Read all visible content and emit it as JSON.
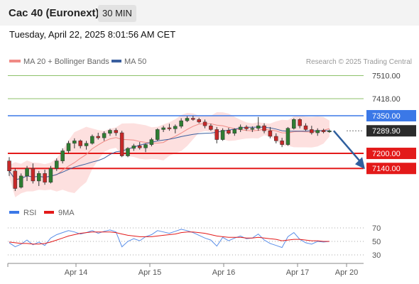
{
  "header": {
    "title": "Cac 40 (Euronext)",
    "timeframe": "30 MIN",
    "datetime": "Tuesday, April 22, 2025 8:01:56 AM CET"
  },
  "legend": {
    "items": [
      {
        "label": "MA 20 + Bollinger Bands",
        "color": "#f08a85"
      },
      {
        "label": "MA 50",
        "color": "#3a5f9f"
      }
    ],
    "credit": "Research © 2025 Trading Central"
  },
  "chart_data": [
    {
      "type": "candlestick",
      "title": "Cac 40 (Euronext)",
      "x_ticks": [
        "Apr 14",
        "Apr 15",
        "Apr 16",
        "Apr 17",
        "Apr 20"
      ],
      "ylim": [
        7060,
        7540
      ],
      "levels": [
        {
          "value": 7510.0,
          "label": "7510.00",
          "kind": "resistance",
          "color": "#8dc26a"
        },
        {
          "value": 7418.0,
          "label": "7418.00",
          "kind": "resistance",
          "color": "#8dc26a"
        },
        {
          "value": 7350.0,
          "label": "7350.00",
          "kind": "pivot",
          "color": "#3b78e7"
        },
        {
          "value": 7289.9,
          "label": "7289.90",
          "kind": "last",
          "color": "#2b2b2b"
        },
        {
          "value": 7200.0,
          "label": "7200.00",
          "kind": "support",
          "color": "#e31a1a"
        },
        {
          "value": 7140.0,
          "label": "7140.00",
          "kind": "support",
          "color": "#e31a1a"
        }
      ],
      "candles": [
        {
          "o": 7170,
          "h": 7185,
          "l": 7110,
          "c": 7130
        },
        {
          "o": 7130,
          "h": 7140,
          "l": 7050,
          "c": 7060
        },
        {
          "o": 7065,
          "h": 7120,
          "l": 7060,
          "c": 7110
        },
        {
          "o": 7110,
          "h": 7150,
          "l": 7090,
          "c": 7140
        },
        {
          "o": 7140,
          "h": 7160,
          "l": 7080,
          "c": 7090
        },
        {
          "o": 7090,
          "h": 7130,
          "l": 7070,
          "c": 7120
        },
        {
          "o": 7120,
          "h": 7135,
          "l": 7075,
          "c": 7085
        },
        {
          "o": 7085,
          "h": 7150,
          "l": 7080,
          "c": 7140
        },
        {
          "o": 7140,
          "h": 7180,
          "l": 7130,
          "c": 7170
        },
        {
          "o": 7170,
          "h": 7220,
          "l": 7160,
          "c": 7210
        },
        {
          "o": 7210,
          "h": 7250,
          "l": 7200,
          "c": 7240
        },
        {
          "o": 7240,
          "h": 7260,
          "l": 7220,
          "c": 7250
        },
        {
          "o": 7250,
          "h": 7255,
          "l": 7220,
          "c": 7230
        },
        {
          "o": 7230,
          "h": 7250,
          "l": 7215,
          "c": 7240
        },
        {
          "o": 7240,
          "h": 7275,
          "l": 7235,
          "c": 7268
        },
        {
          "o": 7268,
          "h": 7282,
          "l": 7255,
          "c": 7262
        },
        {
          "o": 7262,
          "h": 7288,
          "l": 7250,
          "c": 7280
        },
        {
          "o": 7280,
          "h": 7298,
          "l": 7270,
          "c": 7292
        },
        {
          "o": 7292,
          "h": 7300,
          "l": 7270,
          "c": 7282
        },
        {
          "o": 7282,
          "h": 7290,
          "l": 7185,
          "c": 7190
        },
        {
          "o": 7190,
          "h": 7225,
          "l": 7185,
          "c": 7220
        },
        {
          "o": 7220,
          "h": 7238,
          "l": 7210,
          "c": 7230
        },
        {
          "o": 7230,
          "h": 7245,
          "l": 7215,
          "c": 7222
        },
        {
          "o": 7222,
          "h": 7240,
          "l": 7205,
          "c": 7235
        },
        {
          "o": 7235,
          "h": 7262,
          "l": 7228,
          "c": 7255
        },
        {
          "o": 7255,
          "h": 7300,
          "l": 7250,
          "c": 7295
        },
        {
          "o": 7295,
          "h": 7310,
          "l": 7285,
          "c": 7302
        },
        {
          "o": 7302,
          "h": 7318,
          "l": 7290,
          "c": 7298
        },
        {
          "o": 7298,
          "h": 7315,
          "l": 7280,
          "c": 7308
        },
        {
          "o": 7308,
          "h": 7340,
          "l": 7300,
          "c": 7330
        },
        {
          "o": 7330,
          "h": 7348,
          "l": 7325,
          "c": 7340
        },
        {
          "o": 7340,
          "h": 7350,
          "l": 7330,
          "c": 7335
        },
        {
          "o": 7335,
          "h": 7342,
          "l": 7320,
          "c": 7325
        },
        {
          "o": 7325,
          "h": 7335,
          "l": 7300,
          "c": 7310
        },
        {
          "o": 7310,
          "h": 7318,
          "l": 7290,
          "c": 7295
        },
        {
          "o": 7295,
          "h": 7305,
          "l": 7240,
          "c": 7255
        },
        {
          "o": 7255,
          "h": 7300,
          "l": 7250,
          "c": 7292
        },
        {
          "o": 7292,
          "h": 7302,
          "l": 7275,
          "c": 7280
        },
        {
          "o": 7280,
          "h": 7300,
          "l": 7270,
          "c": 7295
        },
        {
          "o": 7295,
          "h": 7315,
          "l": 7285,
          "c": 7305
        },
        {
          "o": 7305,
          "h": 7312,
          "l": 7290,
          "c": 7298
        },
        {
          "o": 7298,
          "h": 7308,
          "l": 7285,
          "c": 7300
        },
        {
          "o": 7300,
          "h": 7345,
          "l": 7290,
          "c": 7310
        },
        {
          "o": 7310,
          "h": 7320,
          "l": 7280,
          "c": 7290
        },
        {
          "o": 7290,
          "h": 7305,
          "l": 7260,
          "c": 7268
        },
        {
          "o": 7268,
          "h": 7280,
          "l": 7240,
          "c": 7250
        },
        {
          "o": 7250,
          "h": 7262,
          "l": 7225,
          "c": 7235
        },
        {
          "o": 7235,
          "h": 7305,
          "l": 7230,
          "c": 7300
        },
        {
          "o": 7300,
          "h": 7340,
          "l": 7295,
          "c": 7335
        },
        {
          "o": 7335,
          "h": 7340,
          "l": 7300,
          "c": 7310
        },
        {
          "o": 7310,
          "h": 7320,
          "l": 7290,
          "c": 7295
        },
        {
          "o": 7295,
          "h": 7310,
          "l": 7275,
          "c": 7282
        },
        {
          "o": 7282,
          "h": 7300,
          "l": 7270,
          "c": 7292
        },
        {
          "o": 7292,
          "h": 7298,
          "l": 7280,
          "c": 7286
        },
        {
          "o": 7286,
          "h": 7295,
          "l": 7282,
          "c": 7290
        }
      ],
      "forecast_arrow": {
        "from": 7289.9,
        "to": 7140
      }
    },
    {
      "type": "line",
      "title": "",
      "legend": [
        {
          "label": "RSI",
          "color": "#3b78e7"
        },
        {
          "label": "9MA",
          "color": "#e31a1a"
        }
      ],
      "y_ticks": [
        70,
        50,
        30
      ],
      "ylim": [
        20,
        80
      ],
      "series": [
        {
          "name": "RSI",
          "values": [
            48,
            42,
            46,
            52,
            45,
            49,
            44,
            55,
            60,
            63,
            66,
            64,
            61,
            63,
            66,
            62,
            65,
            67,
            64,
            42,
            50,
            54,
            51,
            57,
            60,
            66,
            64,
            62,
            65,
            68,
            66,
            63,
            59,
            55,
            52,
            43,
            56,
            51,
            55,
            58,
            54,
            55,
            61,
            52,
            47,
            44,
            41,
            57,
            63,
            53,
            48,
            46,
            50,
            49,
            50
          ]
        },
        {
          "name": "9MA",
          "values": [
            49,
            48,
            47,
            47,
            46,
            46,
            47,
            49,
            52,
            55,
            58,
            60,
            62,
            63,
            64,
            64,
            64,
            64,
            63,
            61,
            59,
            58,
            57,
            57,
            57,
            58,
            59,
            60,
            61,
            63,
            64,
            64,
            63,
            62,
            60,
            58,
            57,
            56,
            56,
            56,
            55,
            55,
            56,
            55,
            54,
            53,
            51,
            52,
            53,
            53,
            52,
            51,
            51,
            50,
            50
          ]
        }
      ]
    }
  ],
  "x_axis": {
    "ticks": [
      "Apr 14",
      "Apr 15",
      "Apr 16",
      "Apr 17",
      "Apr 20"
    ]
  },
  "rsi_panel": {
    "legend": [
      {
        "label": "RSI",
        "color": "#3b78e7"
      },
      {
        "label": "9MA",
        "color": "#e31a1a"
      }
    ],
    "ticks": [
      "70",
      "50",
      "30"
    ]
  }
}
